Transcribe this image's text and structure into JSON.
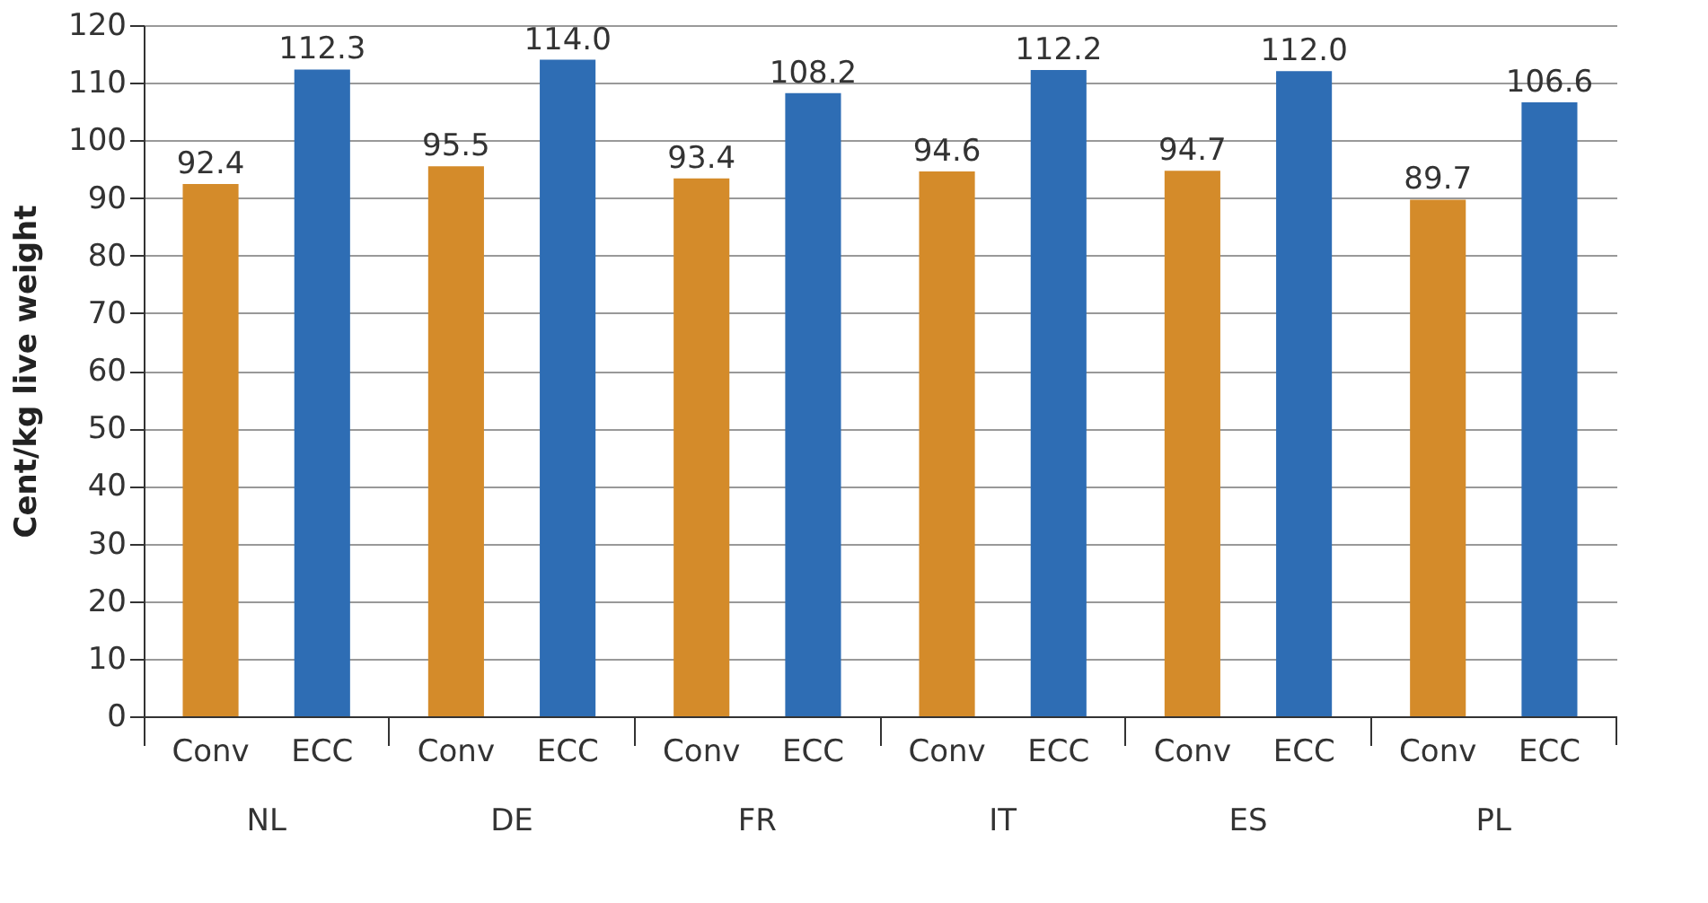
{
  "chart_data": {
    "type": "bar",
    "ylabel": "Cent/kg live weight",
    "categories": [
      "NL",
      "DE",
      "FR",
      "IT",
      "ES",
      "PL"
    ],
    "series": [
      {
        "name": "Conv",
        "color": "#d48b2a",
        "values": [
          92.4,
          95.5,
          93.4,
          94.6,
          94.7,
          89.7
        ],
        "value_labels": [
          "92.4",
          "95.5",
          "93.4",
          "94.6",
          "94.7",
          "89.7"
        ]
      },
      {
        "name": "ECC",
        "color": "#2e6db4",
        "values": [
          112.3,
          114.0,
          108.2,
          112.2,
          112.0,
          106.6
        ],
        "value_labels": [
          "112.3",
          "114.0",
          "108.2",
          "112.2",
          "112.0",
          "106.6"
        ]
      }
    ],
    "ylim": [
      0,
      120
    ],
    "yticks": [
      0,
      10,
      20,
      30,
      40,
      50,
      60,
      70,
      80,
      90,
      100,
      110,
      120
    ],
    "grid": "y",
    "legend": false,
    "data_labels": true
  }
}
